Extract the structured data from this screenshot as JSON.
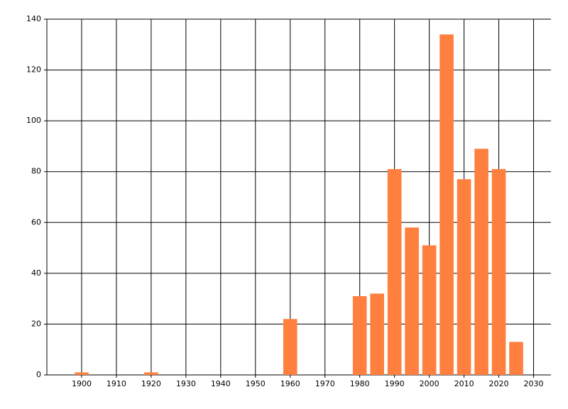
{
  "chart_data": {
    "type": "bar",
    "x": [
      1900,
      1920,
      1960,
      1980,
      1985,
      1990,
      1995,
      2000,
      2005,
      2010,
      2015,
      2020,
      2025
    ],
    "values": [
      1,
      1,
      22,
      31,
      32,
      81,
      58,
      51,
      134,
      77,
      89,
      81,
      13
    ],
    "color": "#ff7f3f",
    "xlim": [
      1890,
      2035
    ],
    "xticks": [
      1900,
      1910,
      1920,
      1930,
      1940,
      1950,
      1960,
      1970,
      1980,
      1990,
      2000,
      2010,
      2020,
      2030
    ],
    "ylim": [
      0,
      140
    ],
    "yticks": [
      0,
      20,
      40,
      60,
      80,
      100,
      120,
      140
    ],
    "grid": true
  }
}
